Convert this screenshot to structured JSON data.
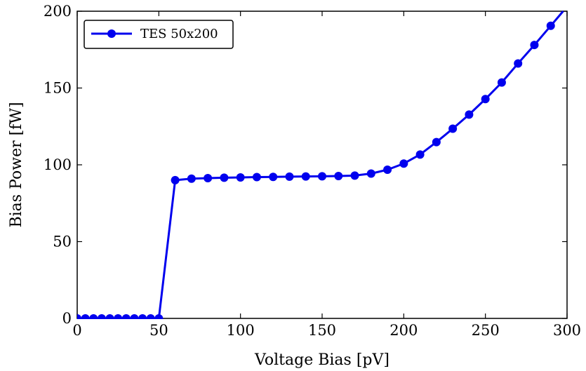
{
  "chart_data": {
    "type": "line",
    "xlabel": "Voltage Bias [pV]",
    "ylabel": "Bias Power [fW]",
    "xlim": [
      0,
      300
    ],
    "ylim": [
      0,
      200
    ],
    "xticks": [
      0,
      50,
      100,
      150,
      200,
      250,
      300
    ],
    "yticks": [
      0,
      50,
      100,
      150,
      200
    ],
    "grid": false,
    "legend_position": "top-left",
    "series": [
      {
        "name": "TES 50x200",
        "color": "#0000ee",
        "marker": "circle",
        "x": [
          0,
          5,
          10,
          15,
          20,
          25,
          30,
          35,
          40,
          45,
          50,
          60,
          70,
          80,
          90,
          100,
          110,
          120,
          130,
          140,
          150,
          160,
          170,
          180,
          190,
          200,
          210,
          220,
          230,
          240,
          250,
          260,
          270,
          280,
          290
        ],
        "y": [
          0,
          0,
          0,
          0,
          0,
          0,
          0,
          0,
          0,
          0,
          0,
          90.0,
          91.0,
          91.3,
          91.6,
          91.8,
          92.0,
          92.1,
          92.3,
          92.4,
          92.5,
          92.7,
          93.0,
          94.3,
          96.8,
          100.8,
          106.7,
          114.8,
          123.5,
          132.7,
          142.8,
          153.6,
          166.0,
          178.0,
          190.5
        ]
      }
    ]
  }
}
